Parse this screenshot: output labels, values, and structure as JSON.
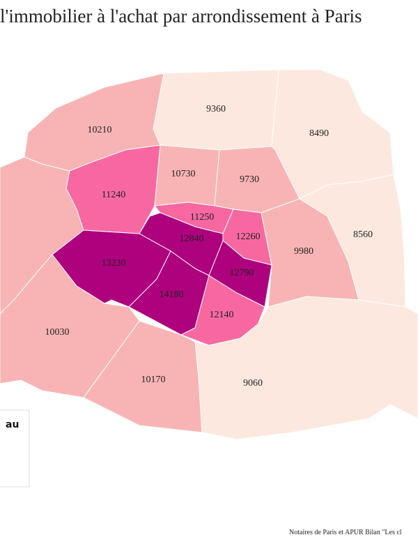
{
  "title": "l'immobilier à l'achat par arrondissement à Paris",
  "legend": {
    "title": "au"
  },
  "source": "Notaires de Paris et APUR Bilan \"Les cl",
  "regions": [
    {
      "price": 9360,
      "color": "#fde8df"
    },
    {
      "price": 8490,
      "color": "#fde8df"
    },
    {
      "price": 10210,
      "color": "#f8b4b4"
    },
    {
      "price": 11240,
      "color": "#f768a1"
    },
    {
      "price": 10730,
      "color": "#f8b4b4"
    },
    {
      "price": 9730,
      "color": "#f8b4b4"
    },
    {
      "price": 11250,
      "color": "#f768a1"
    },
    {
      "price": 12260,
      "color": "#f768a1"
    },
    {
      "price": 12840,
      "color": "#ae017e"
    },
    {
      "price": 12790,
      "color": "#ae017e"
    },
    {
      "price": 13230,
      "color": "#ae017e"
    },
    {
      "price": 14180,
      "color": "#ae017e"
    },
    {
      "price": 12140,
      "color": "#f768a1"
    },
    {
      "price": 9980,
      "color": "#f8b4b4"
    },
    {
      "price": 8560,
      "color": "#fde8df"
    },
    {
      "price": 10030,
      "color": "#f8b4b4"
    },
    {
      "price": 10170,
      "color": "#f8b4b4"
    },
    {
      "price": 9060,
      "color": "#fde8df"
    }
  ]
}
